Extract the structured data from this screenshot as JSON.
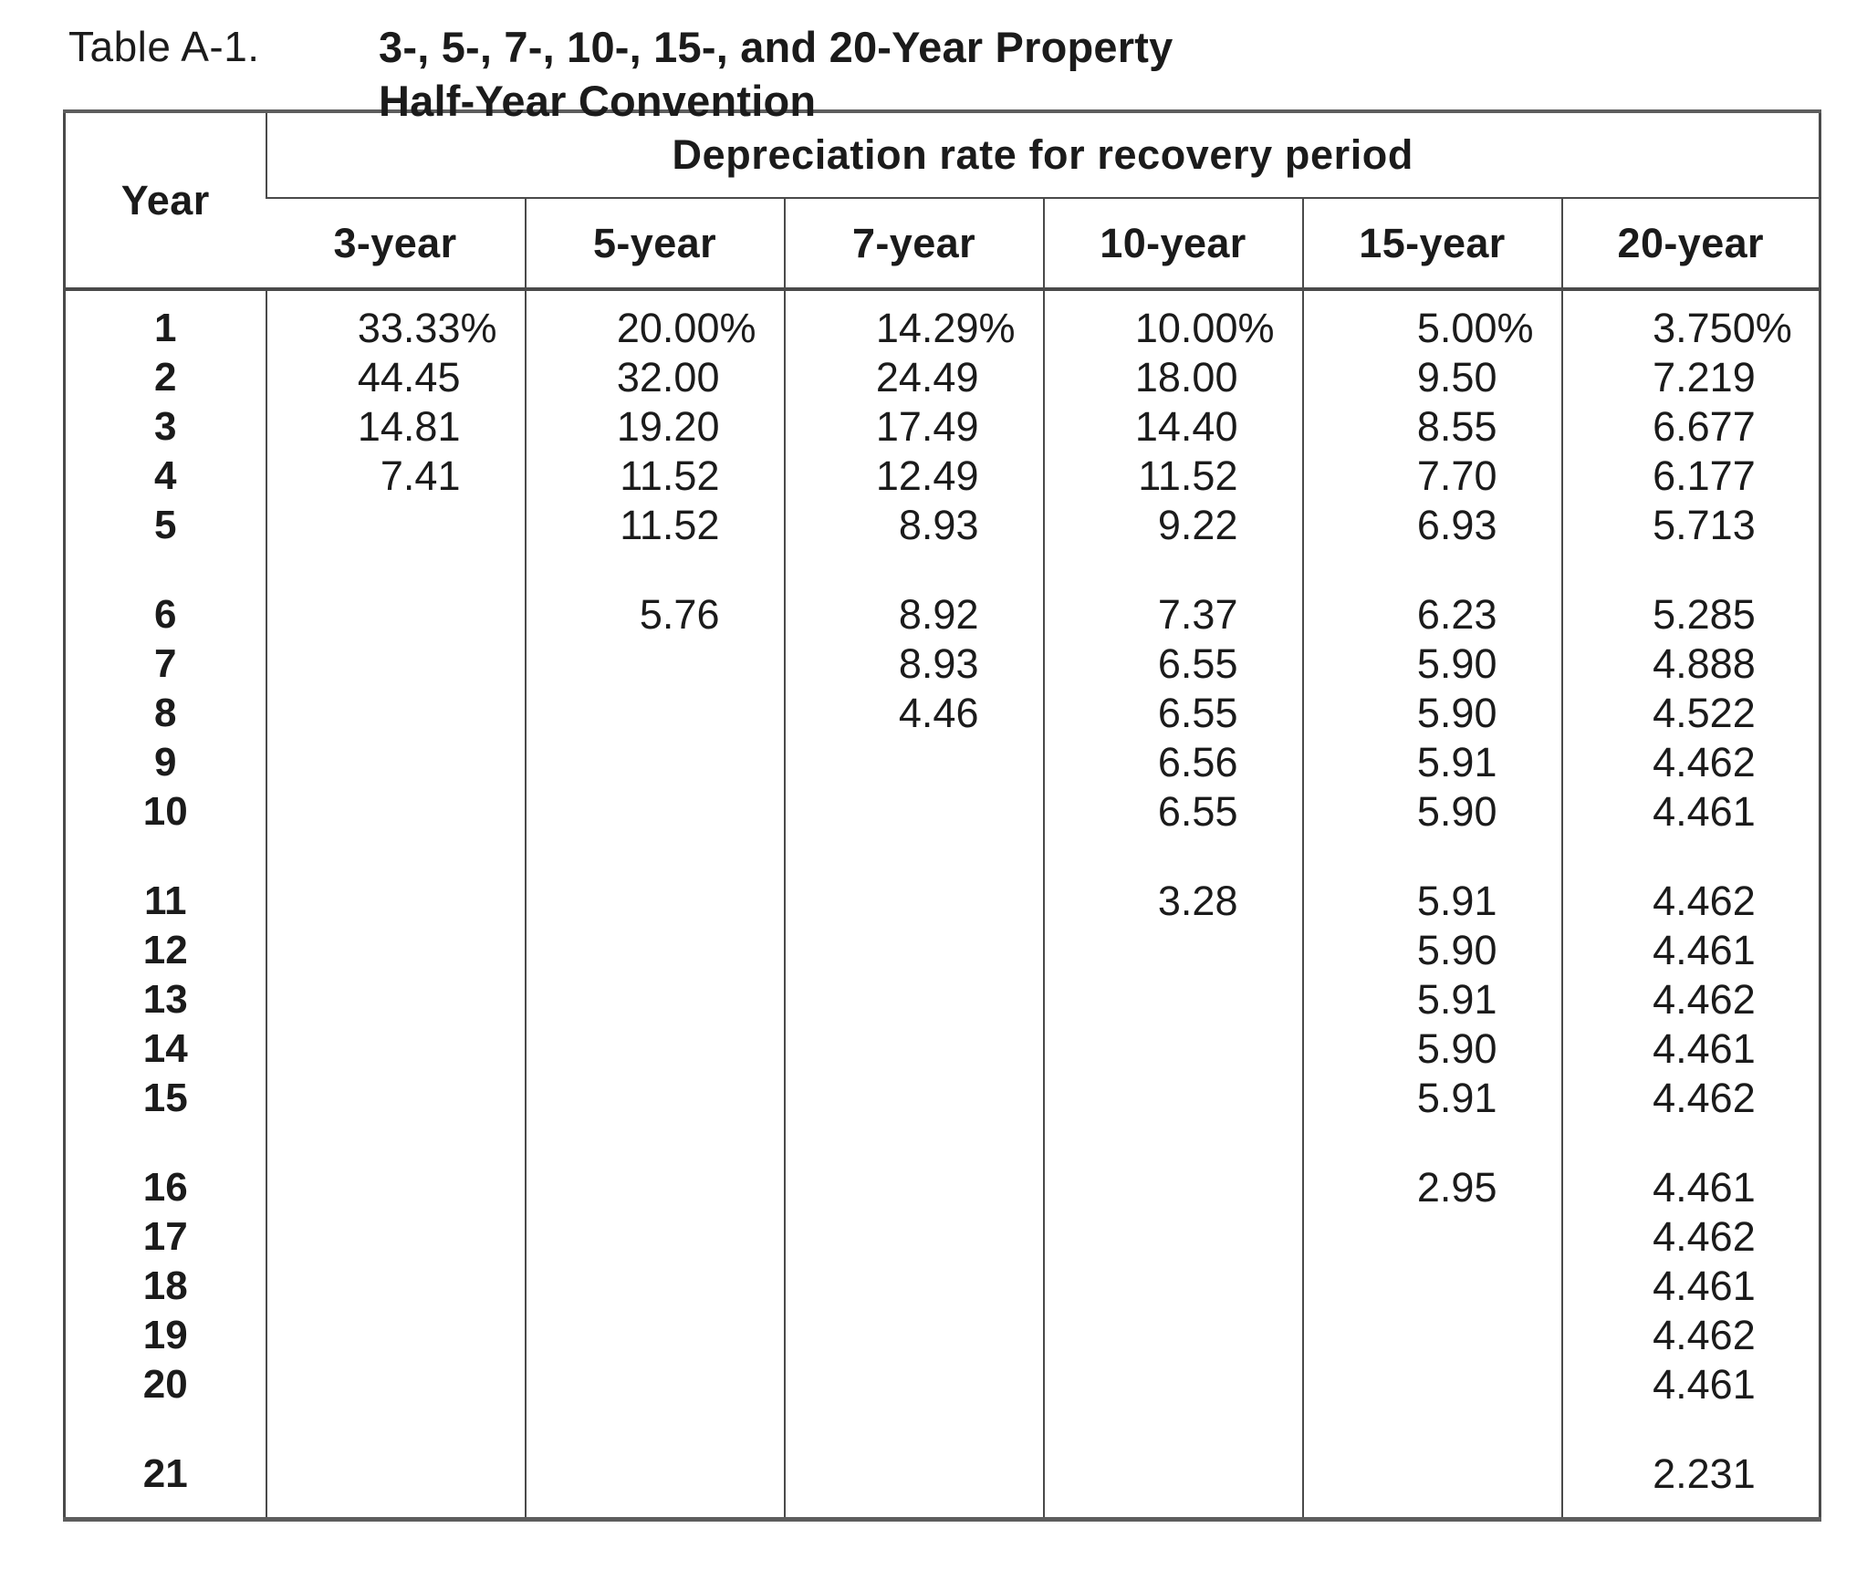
{
  "title": {
    "label": "Table A-1.",
    "line1": "3-, 5-, 7-, 10-, 15-, and 20-Year Property",
    "line2": "Half-Year Convention"
  },
  "table": {
    "corner_header": "Year",
    "group_header": "Depreciation rate for recovery period",
    "column_headers": [
      "3-year",
      "5-year",
      "7-year",
      "10-year",
      "15-year",
      "20-year"
    ],
    "group_breaks_after": [
      5,
      10,
      15,
      20
    ],
    "rows": [
      {
        "year": "1",
        "values": [
          "33.33%",
          "20.00%",
          "14.29%",
          "10.00%",
          "5.00%",
          "3.750%"
        ]
      },
      {
        "year": "2",
        "values": [
          "44.45",
          "32.00",
          "24.49",
          "18.00",
          "9.50",
          "7.219"
        ]
      },
      {
        "year": "3",
        "values": [
          "14.81",
          "19.20",
          "17.49",
          "14.40",
          "8.55",
          "6.677"
        ]
      },
      {
        "year": "4",
        "values": [
          "7.41",
          "11.52",
          "12.49",
          "11.52",
          "7.70",
          "6.177"
        ]
      },
      {
        "year": "5",
        "values": [
          "",
          "11.52",
          "8.93",
          "9.22",
          "6.93",
          "5.713"
        ]
      },
      {
        "year": "6",
        "values": [
          "",
          "5.76",
          "8.92",
          "7.37",
          "6.23",
          "5.285"
        ]
      },
      {
        "year": "7",
        "values": [
          "",
          "",
          "8.93",
          "6.55",
          "5.90",
          "4.888"
        ]
      },
      {
        "year": "8",
        "values": [
          "",
          "",
          "4.46",
          "6.55",
          "5.90",
          "4.522"
        ]
      },
      {
        "year": "9",
        "values": [
          "",
          "",
          "",
          "6.56",
          "5.91",
          "4.462"
        ]
      },
      {
        "year": "10",
        "values": [
          "",
          "",
          "",
          "6.55",
          "5.90",
          "4.461"
        ]
      },
      {
        "year": "11",
        "values": [
          "",
          "",
          "",
          "3.28",
          "5.91",
          "4.462"
        ]
      },
      {
        "year": "12",
        "values": [
          "",
          "",
          "",
          "",
          "5.90",
          "4.461"
        ]
      },
      {
        "year": "13",
        "values": [
          "",
          "",
          "",
          "",
          "5.91",
          "4.462"
        ]
      },
      {
        "year": "14",
        "values": [
          "",
          "",
          "",
          "",
          "5.90",
          "4.461"
        ]
      },
      {
        "year": "15",
        "values": [
          "",
          "",
          "",
          "",
          "5.91",
          "4.462"
        ]
      },
      {
        "year": "16",
        "values": [
          "",
          "",
          "",
          "",
          "2.95",
          "4.461"
        ]
      },
      {
        "year": "17",
        "values": [
          "",
          "",
          "",
          "",
          "",
          "4.462"
        ]
      },
      {
        "year": "18",
        "values": [
          "",
          "",
          "",
          "",
          "",
          "4.461"
        ]
      },
      {
        "year": "19",
        "values": [
          "",
          "",
          "",
          "",
          "",
          "4.462"
        ]
      },
      {
        "year": "20",
        "values": [
          "",
          "",
          "",
          "",
          "",
          "4.461"
        ]
      },
      {
        "year": "21",
        "values": [
          "",
          "",
          "",
          "",
          "",
          "2.231"
        ]
      }
    ]
  },
  "colors": {
    "page_background": "#ffffff",
    "text": "#1b1b1b",
    "border": "#4a4a4a"
  }
}
